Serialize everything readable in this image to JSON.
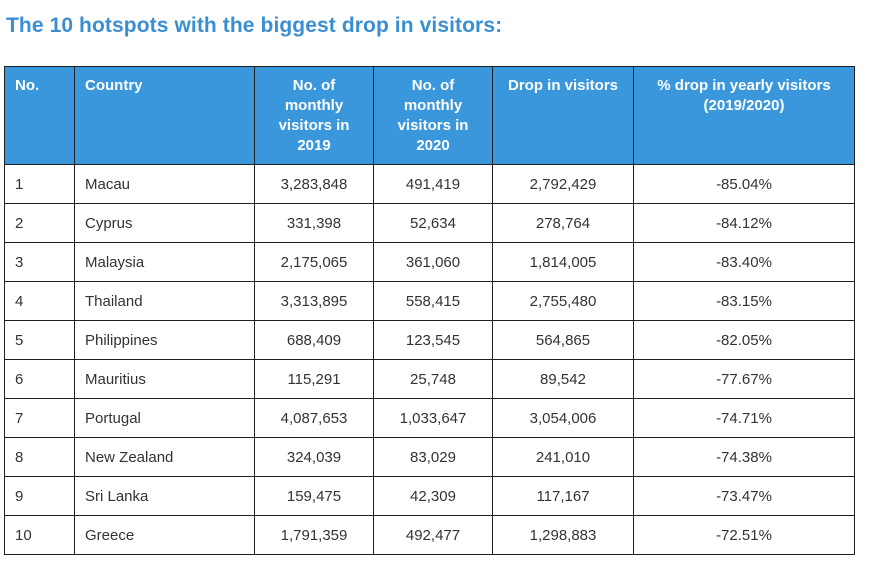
{
  "title": "The 10 hotspots with the biggest drop in visitors:",
  "columns": [
    "No.",
    "Country",
    "No. of monthly visitors in 2019",
    "No. of monthly visitors in 2020",
    "Drop in visitors",
    "% drop in yearly visitors (2019/2020)"
  ],
  "rows": [
    [
      "1",
      "Macau",
      "3,283,848",
      "491,419",
      "2,792,429",
      "-85.04%"
    ],
    [
      "2",
      "Cyprus",
      "331,398",
      "52,634",
      "278,764",
      "-84.12%"
    ],
    [
      "3",
      "Malaysia",
      "2,175,065",
      "361,060",
      "1,814,005",
      "-83.40%"
    ],
    [
      "4",
      "Thailand",
      "3,313,895",
      "558,415",
      "2,755,480",
      "-83.15%"
    ],
    [
      "5",
      "Philippines",
      "688,409",
      "123,545",
      "564,865",
      "-82.05%"
    ],
    [
      "6",
      "Mauritius",
      "115,291",
      "25,748",
      "89,542",
      "-77.67%"
    ],
    [
      "7",
      "Portugal",
      "4,087,653",
      "1,033,647",
      "3,054,006",
      "-74.71%"
    ],
    [
      "8",
      "New Zealand",
      "324,039",
      "83,029",
      "241,010",
      "-74.38%"
    ],
    [
      "9",
      "Sri Lanka",
      "159,475",
      "42,309",
      "117,167",
      "-73.47%"
    ],
    [
      "10",
      "Greece",
      "1,791,359",
      "492,477",
      "1,298,883",
      "-72.51%"
    ]
  ],
  "colors": {
    "title": "#3a8fd3",
    "header_background": "#3a97db",
    "header_text": "#ffffff",
    "cell_text": "#333333",
    "border": "#1f1f1f"
  }
}
